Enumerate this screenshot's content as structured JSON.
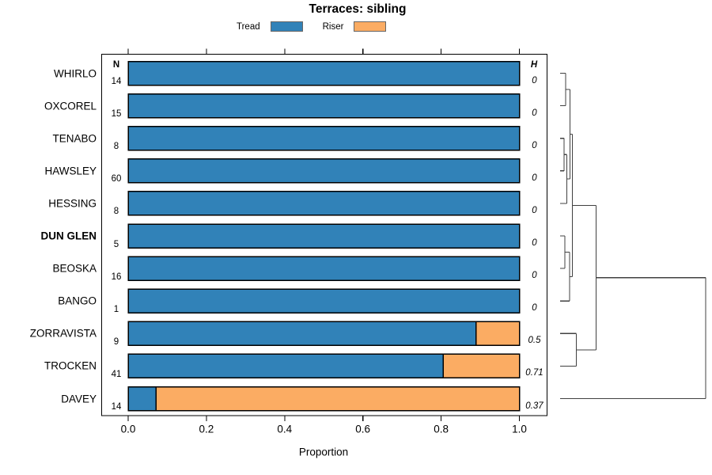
{
  "title": "Terraces: sibling",
  "legend": {
    "items": [
      {
        "label": "Tread",
        "color": "#3182B8"
      },
      {
        "label": "Riser",
        "color": "#FBAC63"
      }
    ]
  },
  "columns": {
    "n_header": "N",
    "h_header": "H"
  },
  "x_axis": {
    "label": "Proportion",
    "tick_labels": [
      "0.0",
      "0.2",
      "0.4",
      "0.6",
      "0.8",
      "1.0"
    ],
    "tick_values": [
      0,
      0.2,
      0.4,
      0.6,
      0.8,
      1.0
    ]
  },
  "chart_data": {
    "type": "bar",
    "orientation": "horizontal",
    "stacked": true,
    "title": "Terraces: sibling",
    "xlabel": "Proportion",
    "xlim": [
      0,
      1
    ],
    "grid": false,
    "legend_position": "top",
    "categories": [
      "WHIRLO",
      "OXCOREL",
      "TENABO",
      "HAWSLEY",
      "HESSING",
      "DUN GLEN",
      "BEOSKA",
      "BANGO",
      "ZORRAVISTA",
      "TROCKEN",
      "DAVEY"
    ],
    "bold_categories": [
      "DUN GLEN"
    ],
    "series": [
      {
        "name": "Tread",
        "color": "#3182B8",
        "values": [
          1,
          1,
          1,
          1,
          1,
          1,
          1,
          1,
          0.889,
          0.805,
          0.071
        ]
      },
      {
        "name": "Riser",
        "color": "#FBAC63",
        "values": [
          0,
          0,
          0,
          0,
          0,
          0,
          0,
          0,
          0.111,
          0.195,
          0.929
        ]
      }
    ],
    "n_values": [
      14,
      15,
      8,
      60,
      8,
      5,
      16,
      1,
      9,
      41,
      14
    ],
    "h_values": [
      "0",
      "0",
      "0",
      "0",
      "0",
      "0",
      "0",
      "0",
      "0.5",
      "0.71",
      "0.37"
    ],
    "dendrogram": {
      "leaf_order": [
        "WHIRLO",
        "OXCOREL",
        "TENABO",
        "HAWSLEY",
        "HESSING",
        "DUN GLEN",
        "BEOSKA",
        "BANGO",
        "ZORRAVISTA",
        "TROCKEN",
        "DAVEY"
      ],
      "merges": [
        {
          "a": "L0",
          "b": "L1",
          "h": 0.038
        },
        {
          "a": "L2",
          "b": "L3",
          "h": 0.027
        },
        {
          "a": "M1",
          "b": "L4",
          "h": 0.046
        },
        {
          "a": "M0",
          "b": "M2",
          "h": 0.068
        },
        {
          "a": "L5",
          "b": "L6",
          "h": 0.033
        },
        {
          "a": "M4",
          "b": "L7",
          "h": 0.065
        },
        {
          "a": "M3",
          "b": "M5",
          "h": 0.084
        },
        {
          "a": "L8",
          "b": "L9",
          "h": 0.111
        },
        {
          "a": "M6",
          "b": "M7",
          "h": 0.247
        },
        {
          "a": "M8",
          "b": "L10",
          "h": 1.0
        }
      ]
    },
    "line_colors": {
      "panel_border": "#000000",
      "bar_border": "#000000",
      "dendrogram": "#404040",
      "ticks": "#000000"
    }
  }
}
